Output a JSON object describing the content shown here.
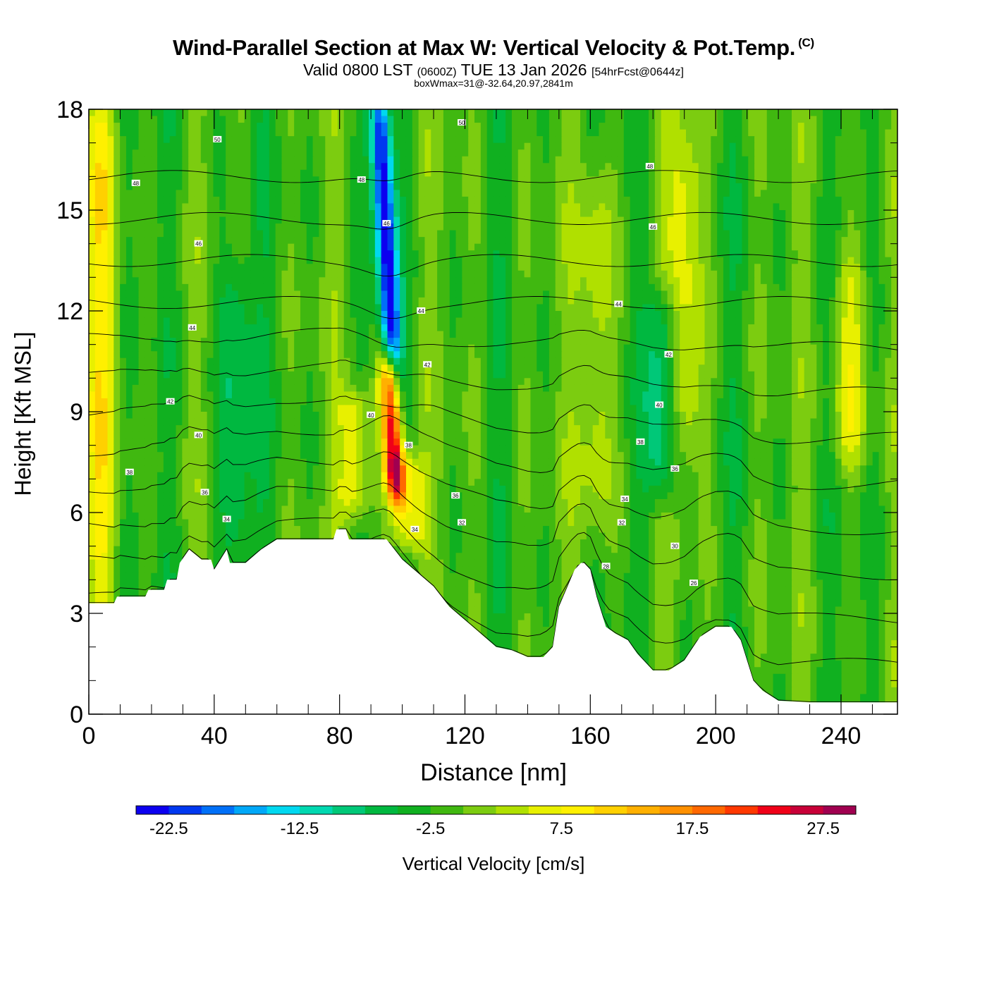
{
  "title": "Wind-Parallel Section at Max W: Vertical Velocity & Pot.Temp.",
  "title_mark": "(C)",
  "subtitle": {
    "valid": "Valid 0800 LST",
    "zulu": "(0600Z)",
    "date": "TUE 13 Jan 2026",
    "forecast": "[54hrFcst@0644z]"
  },
  "subtitle2": "boxWmax=31@-32.64,20.97,2841m",
  "chart_data": {
    "type": "heatmap",
    "title": "Wind-Parallel Section at Max W: Vertical Velocity & Pot.Temp.",
    "xlabel": "Distance [nm]",
    "ylabel": "Height [Kft MSL]",
    "xlim": [
      0,
      258
    ],
    "ylim": [
      0,
      18
    ],
    "x_ticks": [
      0,
      40,
      80,
      120,
      160,
      200,
      240
    ],
    "x_tick_labels": [
      "0",
      "40",
      "80",
      "120",
      "160",
      "200",
      "240"
    ],
    "y_ticks": [
      0,
      3,
      6,
      9,
      12,
      15,
      18
    ],
    "y_tick_labels": [
      "0",
      "3",
      "6",
      "9",
      "12",
      "15",
      "18"
    ],
    "background_w": -1.5,
    "features": [
      {
        "name": "strong downdraft",
        "x": 96,
        "y_range": [
          10,
          18
        ],
        "w": -23
      },
      {
        "name": "strong updraft",
        "x": 95,
        "y_range": [
          7,
          10
        ],
        "w": 31
      },
      {
        "name": "updraft band",
        "x": 85,
        "y_range": [
          6.5,
          9
        ],
        "w": 9
      },
      {
        "name": "updraft lee",
        "x": 102,
        "y_range": [
          5.5,
          7
        ],
        "w": 10
      },
      {
        "name": "left edge updraft",
        "x": 4,
        "y_range": [
          4,
          18
        ],
        "w": 8
      },
      {
        "name": "downdraft column",
        "x": 183,
        "y_range": [
          7,
          12
        ],
        "w": -10
      },
      {
        "name": "updraft column",
        "x": 190,
        "y_range": [
          8,
          17
        ],
        "w": 8
      },
      {
        "name": "updraft column",
        "x": 243,
        "y_range": [
          8,
          13
        ],
        "w": 8
      },
      {
        "name": "updraft column",
        "x": 162,
        "y_range": [
          6,
          16
        ],
        "w": 7
      },
      {
        "name": "downdraft column",
        "x": 47,
        "y_range": [
          5,
          13
        ],
        "w": -7
      }
    ],
    "terrain": {
      "x": [
        0,
        8,
        9,
        18,
        19,
        24,
        25,
        28,
        29,
        32,
        36,
        39,
        40,
        44,
        45,
        49,
        50,
        55,
        60,
        65,
        70,
        75,
        78,
        79,
        82,
        83,
        90,
        95,
        100,
        105,
        110,
        115,
        120,
        125,
        130,
        135,
        140,
        145,
        148,
        150,
        155,
        157,
        158,
        160,
        162,
        165,
        168,
        172,
        175,
        180,
        185,
        190,
        195,
        200,
        205,
        208,
        210,
        212,
        215,
        220,
        230,
        240,
        250,
        258
      ],
      "y": [
        3.3,
        3.3,
        3.5,
        3.5,
        3.7,
        3.7,
        4.0,
        4.0,
        4.5,
        4.9,
        4.6,
        4.6,
        4.3,
        4.9,
        4.5,
        4.5,
        4.5,
        4.9,
        5.2,
        5.2,
        5.2,
        5.2,
        5.2,
        5.5,
        5.5,
        5.2,
        5.2,
        5.2,
        4.6,
        4.2,
        3.8,
        3.2,
        2.8,
        2.4,
        2.0,
        1.9,
        1.7,
        1.7,
        2.0,
        3.2,
        4.3,
        4.5,
        4.5,
        4.3,
        3.5,
        2.6,
        2.4,
        2.2,
        1.8,
        1.3,
        1.3,
        1.6,
        2.3,
        2.6,
        2.6,
        2.2,
        1.6,
        1.0,
        0.7,
        0.4,
        0.35,
        0.35,
        0.35,
        0.35
      ]
    },
    "theta_contours": [
      26,
      28,
      30,
      32,
      34,
      36,
      38,
      40,
      42,
      44,
      46,
      48,
      50
    ],
    "theta_labels": [
      {
        "x": 41,
        "y": 17.1,
        "text": "50"
      },
      {
        "x": 119,
        "y": 17.6,
        "text": "50"
      },
      {
        "x": 15,
        "y": 15.8,
        "text": "48"
      },
      {
        "x": 87,
        "y": 15.9,
        "text": "48"
      },
      {
        "x": 179,
        "y": 16.3,
        "text": "48"
      },
      {
        "x": 35,
        "y": 14.0,
        "text": "46"
      },
      {
        "x": 95,
        "y": 14.6,
        "text": "46"
      },
      {
        "x": 180,
        "y": 14.5,
        "text": "46"
      },
      {
        "x": 33,
        "y": 11.5,
        "text": "44"
      },
      {
        "x": 106,
        "y": 12.0,
        "text": "44"
      },
      {
        "x": 169,
        "y": 12.2,
        "text": "44"
      },
      {
        "x": 185,
        "y": 10.7,
        "text": "42"
      },
      {
        "x": 108,
        "y": 10.4,
        "text": "42"
      },
      {
        "x": 26,
        "y": 9.3,
        "text": "42"
      },
      {
        "x": 182,
        "y": 9.2,
        "text": "40"
      },
      {
        "x": 90,
        "y": 8.9,
        "text": "40"
      },
      {
        "x": 35,
        "y": 8.3,
        "text": "40"
      },
      {
        "x": 13,
        "y": 7.2,
        "text": "38"
      },
      {
        "x": 176,
        "y": 8.1,
        "text": "38"
      },
      {
        "x": 102,
        "y": 8.0,
        "text": "38"
      },
      {
        "x": 187,
        "y": 7.3,
        "text": "36"
      },
      {
        "x": 37,
        "y": 6.6,
        "text": "36"
      },
      {
        "x": 117,
        "y": 6.5,
        "text": "36"
      },
      {
        "x": 171,
        "y": 6.4,
        "text": "34"
      },
      {
        "x": 44,
        "y": 5.8,
        "text": "34"
      },
      {
        "x": 104,
        "y": 5.5,
        "text": "34"
      },
      {
        "x": 119,
        "y": 5.7,
        "text": "32"
      },
      {
        "x": 170,
        "y": 5.7,
        "text": "32"
      },
      {
        "x": 187,
        "y": 5.0,
        "text": "30"
      },
      {
        "x": 165,
        "y": 4.4,
        "text": "28"
      },
      {
        "x": 193,
        "y": 3.9,
        "text": "26"
      }
    ],
    "colorbar": {
      "label": "Vertical Velocity [cm/s]",
      "levels": [
        -25,
        -22.5,
        -20,
        -17.5,
        -15,
        -12.5,
        -10,
        -7.5,
        -5,
        -2.5,
        0,
        2.5,
        5,
        7.5,
        10,
        12.5,
        15,
        17.5,
        20,
        22.5,
        25,
        27.5,
        30
      ],
      "colors": [
        "#0c00f0",
        "#0038f0",
        "#0070f8",
        "#00a8f8",
        "#00d8f0",
        "#00d8b0",
        "#00c878",
        "#00b840",
        "#10b020",
        "#40b810",
        "#7ccc10",
        "#b0e000",
        "#e8f000",
        "#fff000",
        "#ffd000",
        "#ffb000",
        "#ff9000",
        "#ff6800",
        "#ff3800",
        "#f00018",
        "#c80038",
        "#a00050"
      ],
      "tick_values": [
        -22.5,
        -12.5,
        -2.5,
        7.5,
        17.5,
        27.5
      ],
      "tick_labels": [
        "-22.5",
        "-12.5",
        "-2.5",
        "7.5",
        "17.5",
        "27.5"
      ]
    }
  }
}
